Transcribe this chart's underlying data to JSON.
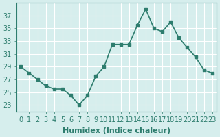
{
  "x": [
    0,
    1,
    2,
    3,
    4,
    5,
    6,
    7,
    8,
    9,
    10,
    11,
    12,
    13,
    14,
    15,
    16,
    17,
    18,
    19,
    20,
    21,
    22,
    23
  ],
  "y": [
    29,
    28,
    27,
    26,
    25.5,
    25.5,
    24.5,
    23,
    24.5,
    27.5,
    29,
    32.5,
    32.5,
    32.5,
    35.5,
    38,
    35,
    34.5,
    36,
    33.5,
    32,
    30.5,
    28.5,
    28
  ],
  "line_color": "#2e7d6e",
  "marker": "s",
  "markersize": 3,
  "linewidth": 1.2,
  "xlabel": "Humidex (Indice chaleur)",
  "ylabel": "",
  "ylim": [
    22,
    39
  ],
  "xlim": [
    -0.5,
    23.5
  ],
  "yticks": [
    23,
    25,
    27,
    29,
    31,
    33,
    35,
    37
  ],
  "xticks": [
    0,
    1,
    2,
    3,
    4,
    5,
    6,
    7,
    8,
    9,
    10,
    11,
    12,
    13,
    14,
    15,
    16,
    17,
    18,
    19,
    20,
    21,
    22,
    23
  ],
  "bg_color": "#d6eeed",
  "grid_color": "#ffffff",
  "tick_color": "#2e7d6e",
  "xlabel_fontsize": 8,
  "tick_fontsize": 7
}
